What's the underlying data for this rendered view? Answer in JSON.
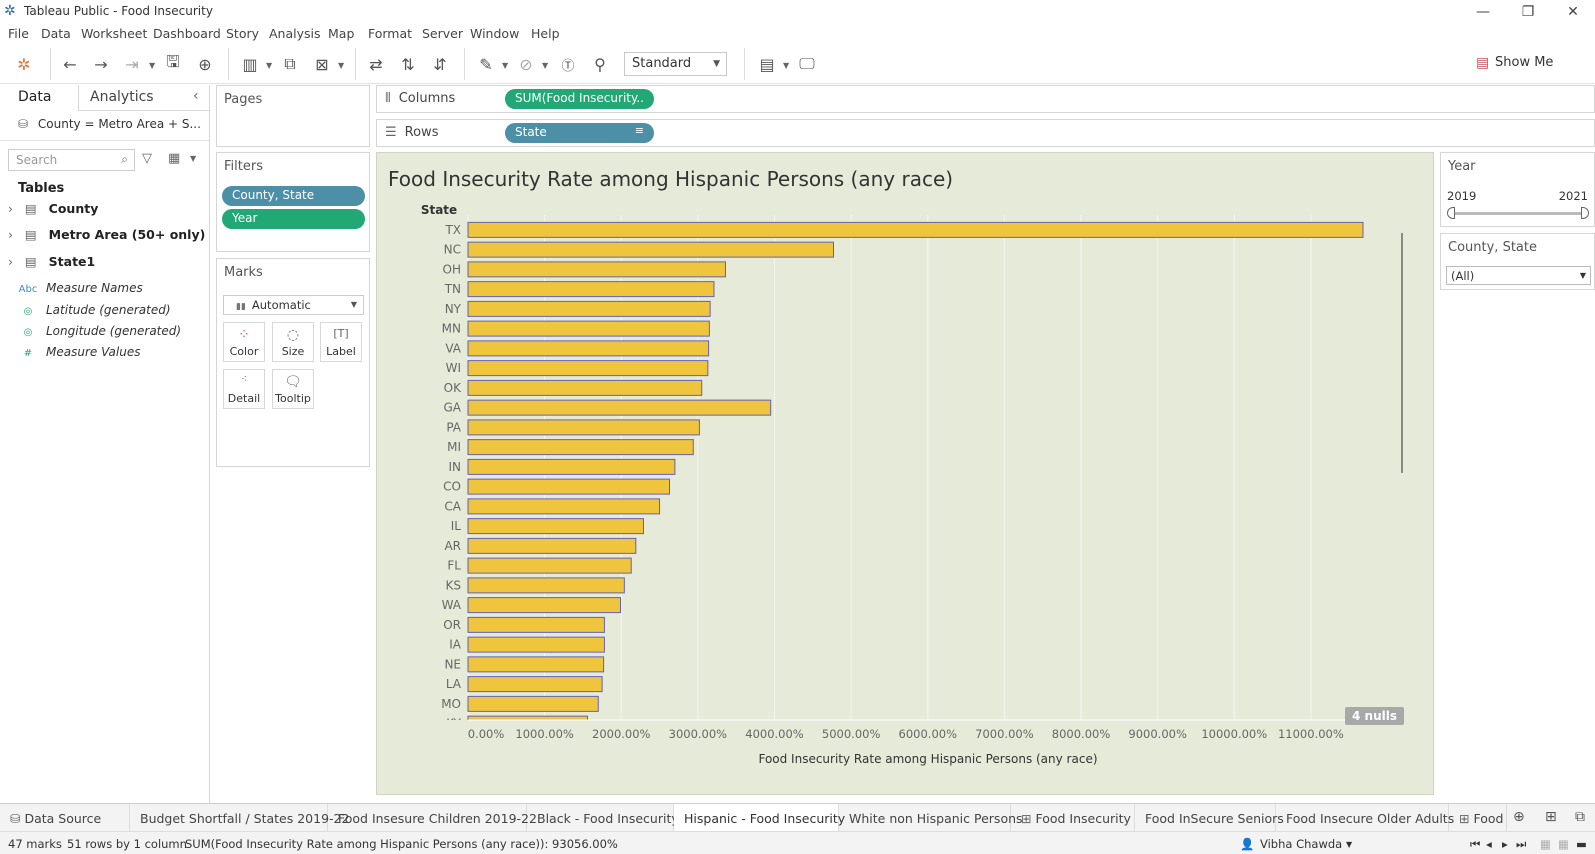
{
  "window": {
    "title": "Tableau Public - Food Insecurity"
  },
  "menu": [
    "File",
    "Data",
    "Worksheet",
    "Dashboard",
    "Story",
    "Analysis",
    "Map",
    "Format",
    "Server",
    "Window",
    "Help"
  ],
  "toolbar": {
    "fit_mode": "Standard",
    "show_me": "Show Me"
  },
  "sidebar": {
    "tabs": [
      "Data",
      "Analytics"
    ],
    "datasource": "County = Metro Area + S...",
    "search_placeholder": "Search",
    "tables_header": "Tables",
    "tables": [
      "County",
      "Metro Area (50+ only)",
      "State1"
    ],
    "fields": [
      {
        "icon": "Abc",
        "name": "Measure Names"
      },
      {
        "icon": "◎",
        "name": "Latitude (generated)"
      },
      {
        "icon": "◎",
        "name": "Longitude (generated)"
      },
      {
        "icon": "#",
        "name": "Measure Values"
      }
    ]
  },
  "pages": {
    "title": "Pages"
  },
  "filters": {
    "title": "Filters",
    "items": [
      "County, State",
      "Year"
    ]
  },
  "marks": {
    "title": "Marks",
    "type": "Automatic",
    "buttons": [
      "Color",
      "Size",
      "Label",
      "Detail",
      "Tooltip"
    ]
  },
  "shelves": {
    "columns_label": "Columns",
    "columns_pill": "SUM(Food Insecurity..",
    "rows_label": "Rows",
    "rows_pill": "State"
  },
  "filter_cards": {
    "year_title": "Year",
    "year_min": "2019",
    "year_max": "2021",
    "county_title": "County, State",
    "county_value": "(All)"
  },
  "nulls_badge": "4 nulls",
  "chart_data": {
    "type": "bar",
    "orientation": "horizontal",
    "title": "Food Insecurity Rate among Hispanic Persons (any race)",
    "xlabel": "Food Insecurity Rate among Hispanic Persons (any race)",
    "ylabel": "State",
    "xlim": [
      0,
      12000
    ],
    "x_ticks": [
      "0.00%",
      "1000.00%",
      "2000.00%",
      "3000.00%",
      "4000.00%",
      "5000.00%",
      "6000.00%",
      "7000.00%",
      "8000.00%",
      "9000.00%",
      "10000.00%",
      "11000.00%"
    ],
    "categories": [
      "TX",
      "NC",
      "OH",
      "TN",
      "NY",
      "MN",
      "VA",
      "WI",
      "OK",
      "GA",
      "PA",
      "MI",
      "IN",
      "CO",
      "CA",
      "IL",
      "AR",
      "FL",
      "KS",
      "WA",
      "OR",
      "IA",
      "NE",
      "LA",
      "MO",
      "KY"
    ],
    "values": [
      11680,
      4770,
      3360,
      3210,
      3160,
      3150,
      3140,
      3130,
      3050,
      3950,
      3020,
      2940,
      2700,
      2630,
      2500,
      2290,
      2190,
      2130,
      2040,
      1990,
      1780,
      1780,
      1770,
      1750,
      1700,
      1560
    ],
    "bar_color": "#f0c53e",
    "bar_border": "#6560b5"
  },
  "sheet_tabs": [
    "Data Source",
    "Budget Shortfall / States 2019-22",
    "Food Insesure Children 2019-22",
    "Black - Food Insecurity",
    "Hispanic - Food Insecurity",
    "White non Hispanic Persons",
    "Food Insecurity",
    "Food InSecure Seniors",
    "Food Insecure Older Adults",
    "Food In"
  ],
  "status": {
    "marks": "47 marks",
    "dims": "51 rows by 1 column",
    "sum": "SUM(Food Insecurity Rate among Hispanic Persons (any race)): 93056.00%",
    "user": "Vibha Chawda"
  }
}
